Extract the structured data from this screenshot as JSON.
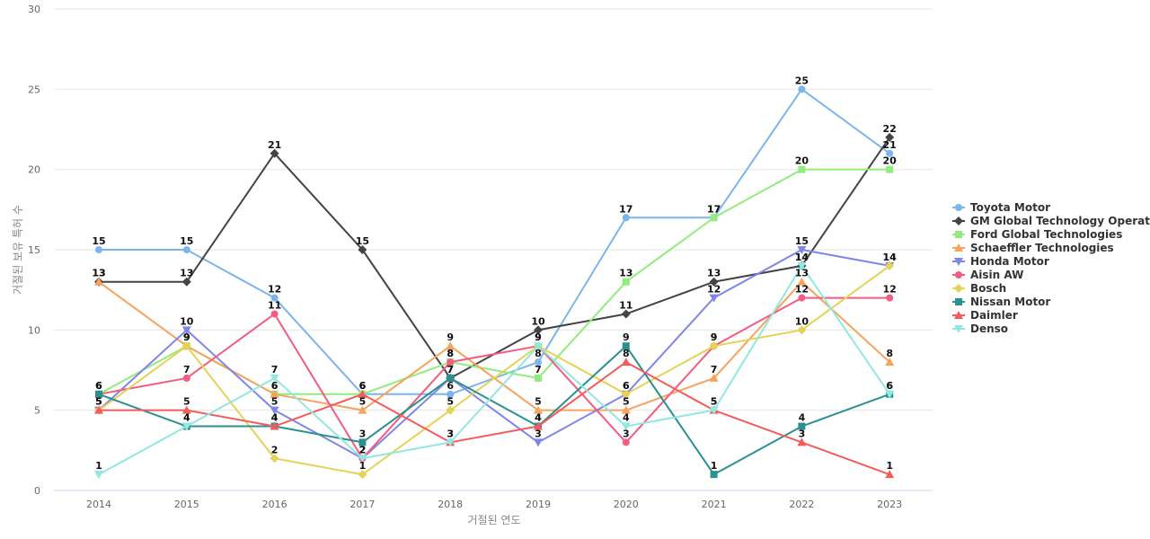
{
  "chart_data": {
    "type": "line",
    "title": "",
    "xlabel": "거절된 연도",
    "ylabel": "거절된 보유 특허 수",
    "x": [
      "2014",
      "2015",
      "2016",
      "2017",
      "2018",
      "2019",
      "2020",
      "2021",
      "2022",
      "2023"
    ],
    "ylim": [
      0,
      30
    ],
    "yticks": [
      0,
      5,
      10,
      15,
      20,
      25,
      30
    ],
    "grid": true,
    "legend_position": "right",
    "series": [
      {
        "name": "Toyota Motor",
        "color": "#7cb5ec",
        "marker": "circle",
        "values": [
          15,
          15,
          12,
          6,
          6,
          8,
          17,
          17,
          25,
          21
        ]
      },
      {
        "name": "GM Global Technology Operat...",
        "color": "#434348",
        "marker": "diamond",
        "values": [
          13,
          13,
          21,
          15,
          7,
          10,
          11,
          13,
          14,
          22
        ]
      },
      {
        "name": "Ford Global Technologies",
        "color": "#90ed7d",
        "marker": "square",
        "values": [
          6,
          9,
          6,
          6,
          8,
          7,
          13,
          17,
          20,
          20
        ]
      },
      {
        "name": "Schaeffler Technologies",
        "color": "#f7a35c",
        "marker": "triangle",
        "values": [
          13,
          9,
          6,
          5,
          9,
          5,
          5,
          7,
          13,
          8
        ]
      },
      {
        "name": "Honda Motor",
        "color": "#8085e9",
        "marker": "triangle-down",
        "values": [
          5,
          10,
          5,
          2,
          7,
          3,
          6,
          12,
          15,
          14
        ]
      },
      {
        "name": "Aisin AW",
        "color": "#f15c80",
        "marker": "circle",
        "values": [
          6,
          7,
          11,
          2,
          8,
          9,
          3,
          9,
          12,
          12
        ]
      },
      {
        "name": "Bosch",
        "color": "#e4d354",
        "marker": "diamond",
        "values": [
          5,
          9,
          2,
          1,
          5,
          9,
          6,
          9,
          10,
          14
        ]
      },
      {
        "name": "Nissan Motor",
        "color": "#2b908f",
        "marker": "square",
        "values": [
          6,
          4,
          4,
          3,
          7,
          4,
          9,
          1,
          4,
          6
        ]
      },
      {
        "name": "Daimler",
        "color": "#f45b5b",
        "marker": "triangle",
        "values": [
          5,
          5,
          4,
          6,
          3,
          4,
          8,
          5,
          3,
          1
        ]
      },
      {
        "name": "Denso",
        "color": "#91e8e1",
        "marker": "triangle-down",
        "values": [
          1,
          4,
          7,
          2,
          3,
          9,
          4,
          5,
          14,
          6
        ]
      }
    ]
  }
}
